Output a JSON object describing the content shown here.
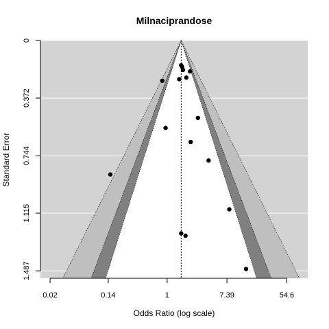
{
  "chart_data": {
    "type": "scatter",
    "subtype": "funnel-plot",
    "title": "Milnaciprandose",
    "xlabel": "Odds Ratio (log scale)",
    "ylabel": "Standard Error",
    "x_scale": "log",
    "x_ticks": [
      {
        "value": 0.02,
        "label": "0.02"
      },
      {
        "value": 0.14,
        "label": "0.14"
      },
      {
        "value": 1,
        "label": "1"
      },
      {
        "value": 7.39,
        "label": "7.39"
      },
      {
        "value": 54.6,
        "label": "54.6"
      }
    ],
    "xlim": [
      0.0145,
      110
    ],
    "y_ticks": [
      {
        "value": 0,
        "label": "0"
      },
      {
        "value": 0.372,
        "label": "0.372"
      },
      {
        "value": 0.744,
        "label": "0.744"
      },
      {
        "value": 1.115,
        "label": "1.115"
      },
      {
        "value": 1.487,
        "label": "1.487"
      }
    ],
    "ylim": [
      0,
      1.535
    ],
    "y_reversed": true,
    "summary_estimate": 1.6,
    "contour_levels": [
      "90%",
      "95%",
      "99%"
    ],
    "grid": true,
    "background_color": "#d3d3d3",
    "contour_colors": [
      "#ffffff",
      "#808080",
      "#bfbfbf"
    ],
    "points": [
      {
        "x": 1.6,
        "y": 0.16
      },
      {
        "x": 1.65,
        "y": 0.17
      },
      {
        "x": 1.7,
        "y": 0.19
      },
      {
        "x": 2.15,
        "y": 0.2
      },
      {
        "x": 1.9,
        "y": 0.24
      },
      {
        "x": 1.5,
        "y": 0.25
      },
      {
        "x": 0.85,
        "y": 0.26
      },
      {
        "x": 2.8,
        "y": 0.5
      },
      {
        "x": 0.95,
        "y": 0.565
      },
      {
        "x": 2.2,
        "y": 0.655
      },
      {
        "x": 4.0,
        "y": 0.775
      },
      {
        "x": 0.15,
        "y": 0.865
      },
      {
        "x": 8.0,
        "y": 1.09
      },
      {
        "x": 1.6,
        "y": 1.245
      },
      {
        "x": 1.85,
        "y": 1.26
      },
      {
        "x": 14.0,
        "y": 1.475
      }
    ]
  }
}
